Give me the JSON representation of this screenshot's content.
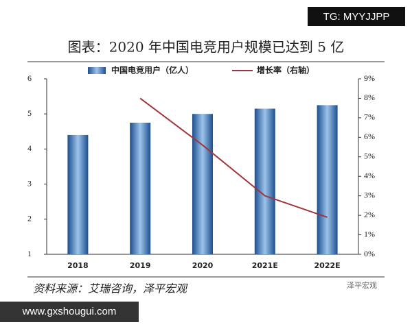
{
  "chart_data": {
    "type": "bar",
    "title": "图表：2020 年中国电竞用户规模已达到 5 亿",
    "categories": [
      "2018",
      "2019",
      "2020",
      "2021E",
      "2022E"
    ],
    "series": [
      {
        "name": "中国电竞用户（亿人）",
        "color": "#2e6fb8",
        "values": [
          4.4,
          4.75,
          5.0,
          5.15,
          5.25
        ]
      },
      {
        "name": "增长率（右轴）",
        "color": "#a0343c",
        "values": [
          null,
          8.0,
          5.6,
          3.0,
          1.9
        ],
        "axis": "y2"
      }
    ],
    "ylim": [
      1,
      6
    ],
    "yticks": [
      1,
      2,
      3,
      4,
      5,
      6
    ],
    "y2lim": [
      0,
      9
    ],
    "y2ticks": [
      {
        "value": 0,
        "label": "0%"
      },
      {
        "value": 1,
        "label": "1%"
      },
      {
        "value": 2,
        "label": "2%"
      },
      {
        "value": 3,
        "label": "3%"
      },
      {
        "value": 4,
        "label": "4%"
      },
      {
        "value": 5,
        "label": "5%"
      },
      {
        "value": 6,
        "label": "6%"
      },
      {
        "value": 7,
        "label": "7%"
      },
      {
        "value": 8,
        "label": "8%"
      },
      {
        "value": 9,
        "label": "9%"
      }
    ],
    "source": "资料来源：艾瑞咨询，泽平宏观",
    "annotations": [
      "TG: MYYJJPP",
      "www.gxshougui.com",
      "泽平宏观"
    ]
  }
}
